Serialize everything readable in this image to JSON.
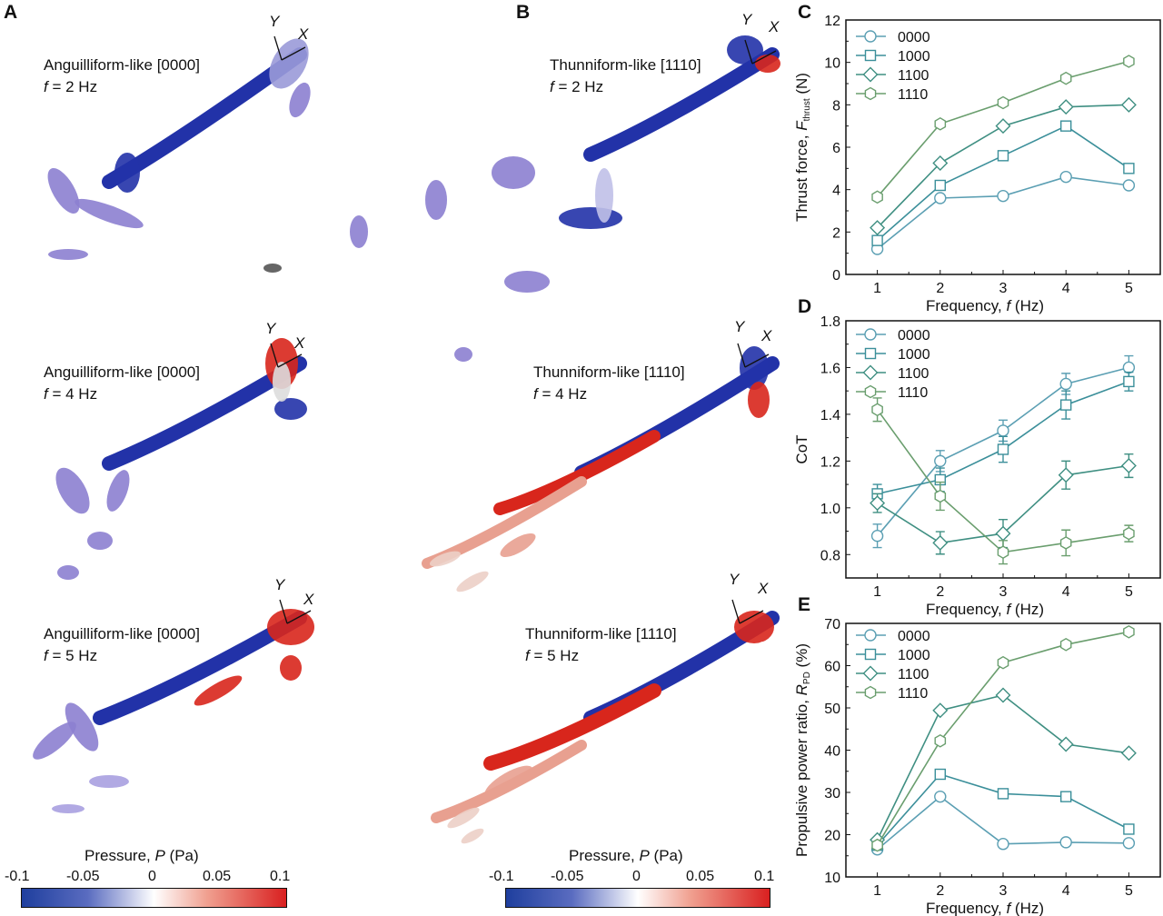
{
  "panels": {
    "A": {
      "label": "A",
      "rows": [
        {
          "title": "Anguilliform-like [0000]",
          "freq_prefix": "f",
          "freq_value": " = 2 Hz"
        },
        {
          "title": "Anguilliform-like [0000]",
          "freq_prefix": "f",
          "freq_value": " = 4 Hz"
        },
        {
          "title": "Anguilliform-like [0000]",
          "freq_prefix": "f",
          "freq_value": " = 5 Hz"
        }
      ]
    },
    "B": {
      "label": "B",
      "rows": [
        {
          "title": "Thunniform-like [1110]",
          "freq_prefix": "f",
          "freq_value": " = 2 Hz"
        },
        {
          "title": "Thunniform-like [1110]",
          "freq_prefix": "f",
          "freq_value": " = 4 Hz"
        },
        {
          "title": "Thunniform-like [1110]",
          "freq_prefix": "f",
          "freq_value": " = 5 Hz"
        }
      ]
    },
    "axis_labels": {
      "x": "X",
      "y": "Y"
    }
  },
  "colorbar": {
    "title_prefix": "Pressure, ",
    "title_var": "P",
    "title_unit": " (Pa)",
    "ticks": [
      "-0.1",
      "-0.05",
      "0",
      "0.05",
      "0.1"
    ],
    "range": [
      -0.1,
      0.1
    ],
    "colors": {
      "low": "#1f3f9e",
      "mid": "#ffffff",
      "high": "#d92020"
    }
  },
  "series_colors": {
    "0000": "#5b9fb3",
    "1000": "#3b8f9a",
    "1100": "#3f8f82",
    "1110": "#6a9e6e"
  },
  "chart_data": [
    {
      "panel": "C",
      "type": "line",
      "xlabel_prefix": "Frequency, ",
      "xlabel_var": "f",
      "xlabel_unit": " (Hz)",
      "ylabel_prefix": "Thrust force, ",
      "ylabel_var": "F",
      "ylabel_sub": "thrust",
      "ylabel_unit": " (N)",
      "x": [
        1,
        2,
        3,
        4,
        5
      ],
      "xlim": [
        0.5,
        5.5
      ],
      "ylim": [
        0,
        12
      ],
      "xticks": [
        "1",
        "2",
        "3",
        "4",
        "5"
      ],
      "yticks": [
        "0",
        "2",
        "4",
        "6",
        "8",
        "10",
        "12"
      ],
      "legend": "top-left",
      "series": [
        {
          "name": "0000",
          "marker": "circle",
          "values": [
            1.2,
            3.6,
            3.7,
            4.6,
            4.2
          ]
        },
        {
          "name": "1000",
          "marker": "square",
          "values": [
            1.6,
            4.2,
            5.6,
            7.0,
            5.0
          ]
        },
        {
          "name": "1100",
          "marker": "diamond",
          "values": [
            2.2,
            5.25,
            7.0,
            7.9,
            8.0
          ]
        },
        {
          "name": "1110",
          "marker": "hexagon",
          "values": [
            3.65,
            7.1,
            8.1,
            9.25,
            10.05
          ]
        }
      ]
    },
    {
      "panel": "D",
      "type": "line",
      "xlabel_prefix": "Frequency, ",
      "xlabel_var": "f",
      "xlabel_unit": " (Hz)",
      "ylabel_prefix": "CoT",
      "ylabel_var": "",
      "ylabel_sub": "",
      "ylabel_unit": "",
      "x": [
        1,
        2,
        3,
        4,
        5
      ],
      "xlim": [
        0.5,
        5.5
      ],
      "ylim": [
        0.7,
        1.8
      ],
      "xticks": [
        "1",
        "2",
        "3",
        "4",
        "5"
      ],
      "yticks": [
        "0.8",
        "1.0",
        "1.2",
        "1.4",
        "1.6",
        "1.8"
      ],
      "legend": "top-left",
      "series": [
        {
          "name": "0000",
          "marker": "circle",
          "values": [
            0.88,
            1.2,
            1.33,
            1.53,
            1.6
          ],
          "error": [
            0.05,
            0.045,
            0.045,
            0.045,
            0.05
          ]
        },
        {
          "name": "1000",
          "marker": "square",
          "values": [
            1.06,
            1.12,
            1.25,
            1.44,
            1.54
          ],
          "error": [
            0.04,
            0.05,
            0.055,
            0.06,
            0.04
          ]
        },
        {
          "name": "1100",
          "marker": "diamond",
          "values": [
            1.02,
            0.85,
            0.89,
            1.14,
            1.18
          ],
          "error": [
            0.04,
            0.048,
            0.06,
            0.06,
            0.05
          ]
        },
        {
          "name": "1110",
          "marker": "hexagon",
          "values": [
            1.42,
            1.05,
            0.81,
            0.85,
            0.89
          ],
          "error": [
            0.05,
            0.06,
            0.05,
            0.055,
            0.035
          ]
        }
      ]
    },
    {
      "panel": "E",
      "type": "line",
      "xlabel_prefix": "Frequency, ",
      "xlabel_var": "f",
      "xlabel_unit": " (Hz)",
      "ylabel_prefix": "Propulsive power ratio, ",
      "ylabel_var": "R",
      "ylabel_sub": "PD",
      "ylabel_unit": " (%)",
      "x": [
        1,
        2,
        3,
        4,
        5
      ],
      "xlim": [
        0.5,
        5.5
      ],
      "ylim": [
        10,
        70
      ],
      "xticks": [
        "1",
        "2",
        "3",
        "4",
        "5"
      ],
      "yticks": [
        "10",
        "20",
        "30",
        "40",
        "50",
        "60",
        "70"
      ],
      "legend": "top-left",
      "series": [
        {
          "name": "0000",
          "marker": "circle",
          "values": [
            16.5,
            29,
            17.8,
            18.2,
            18
          ]
        },
        {
          "name": "1000",
          "marker": "square",
          "values": [
            17.5,
            34.3,
            29.7,
            29,
            21.3
          ]
        },
        {
          "name": "1100",
          "marker": "diamond",
          "values": [
            18.8,
            49.4,
            53,
            41.4,
            39.3
          ]
        },
        {
          "name": "1110",
          "marker": "hexagon",
          "values": [
            17.5,
            42.2,
            60.7,
            65,
            68
          ]
        }
      ]
    }
  ]
}
